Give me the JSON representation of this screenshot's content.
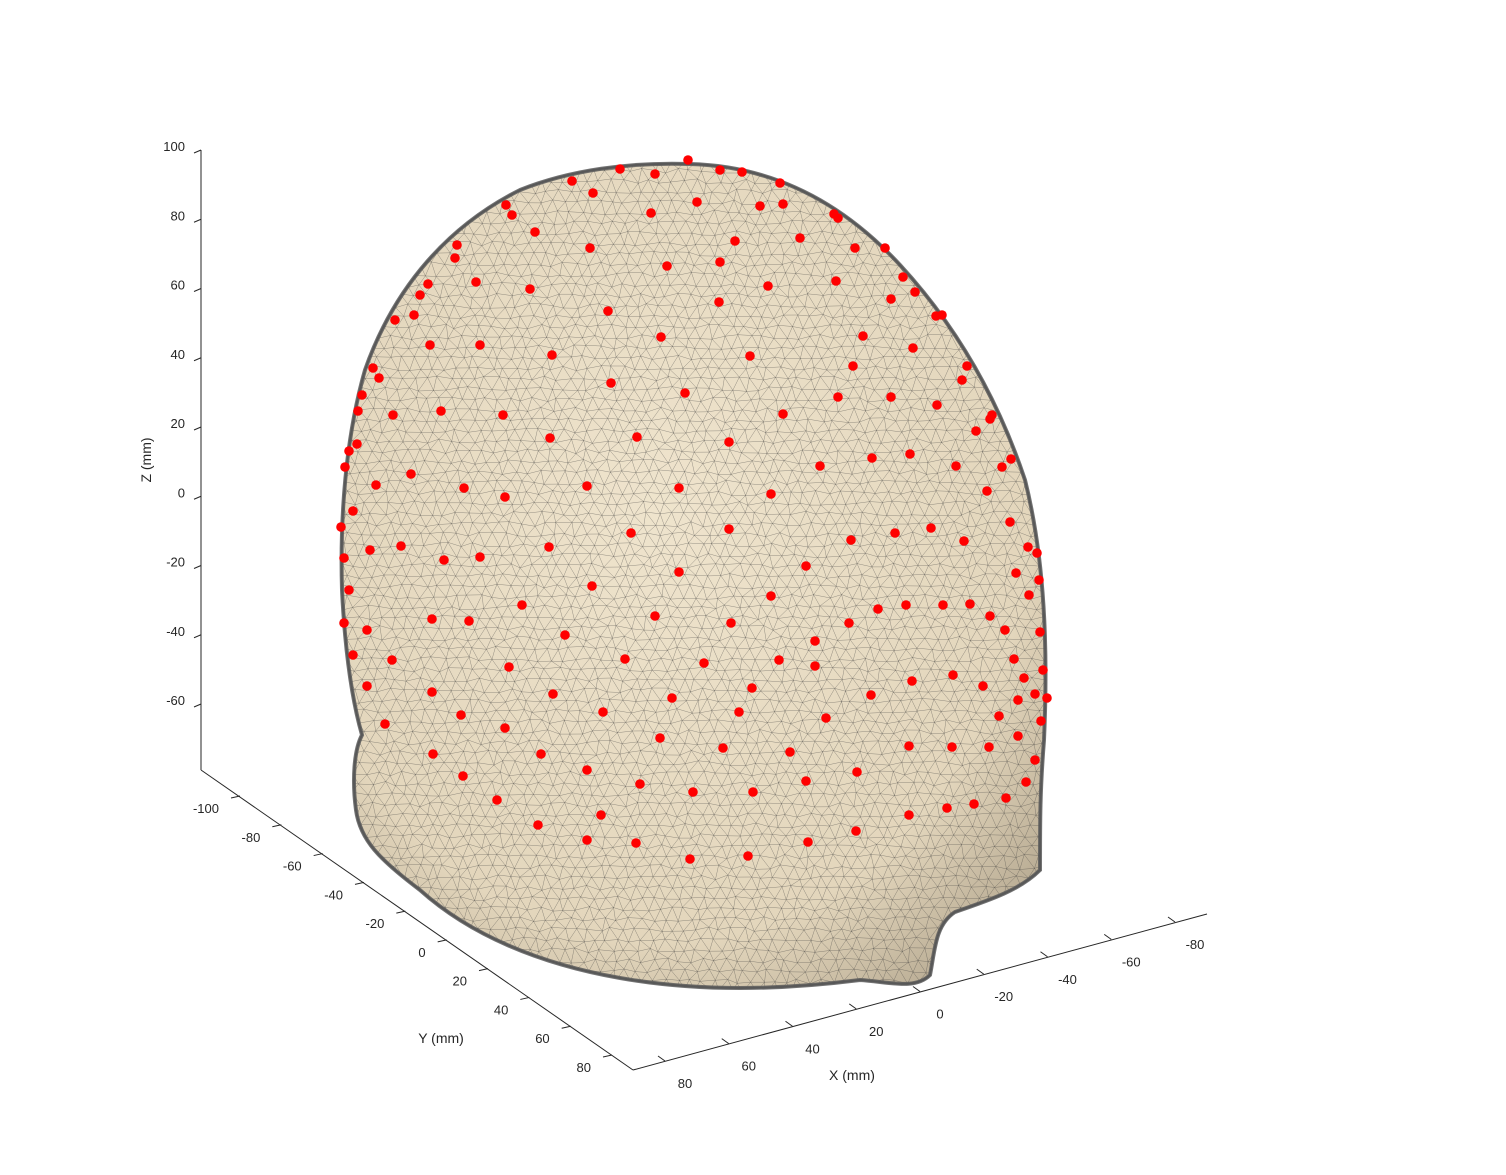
{
  "chart_data": {
    "type": "scatter",
    "subtype": "3d-surface-with-points",
    "title": "",
    "xlabel": "X (mm)",
    "ylabel": "Y (mm)",
    "zlabel": "Z (mm)",
    "x_ticks": [
      "80",
      "60",
      "40",
      "20",
      "0",
      "-20",
      "-40",
      "-60",
      "-80"
    ],
    "y_ticks": [
      "-100",
      "-80",
      "-60",
      "-40",
      "-20",
      "0",
      "20",
      "40",
      "60",
      "80"
    ],
    "z_ticks": [
      "100",
      "80",
      "60",
      "40",
      "20",
      "0",
      "-20",
      "-40",
      "-60"
    ],
    "xlim": [
      -90,
      90
    ],
    "ylim": [
      -110,
      90
    ],
    "zlim": [
      -80,
      100
    ],
    "surface": {
      "name": "",
      "color": "#e8dcc4",
      "edge_color": "#3a3a3a"
    },
    "points": {
      "name": "",
      "color": "#ff0000",
      "count_approx": 256
    },
    "grid": false,
    "legend": "none"
  }
}
